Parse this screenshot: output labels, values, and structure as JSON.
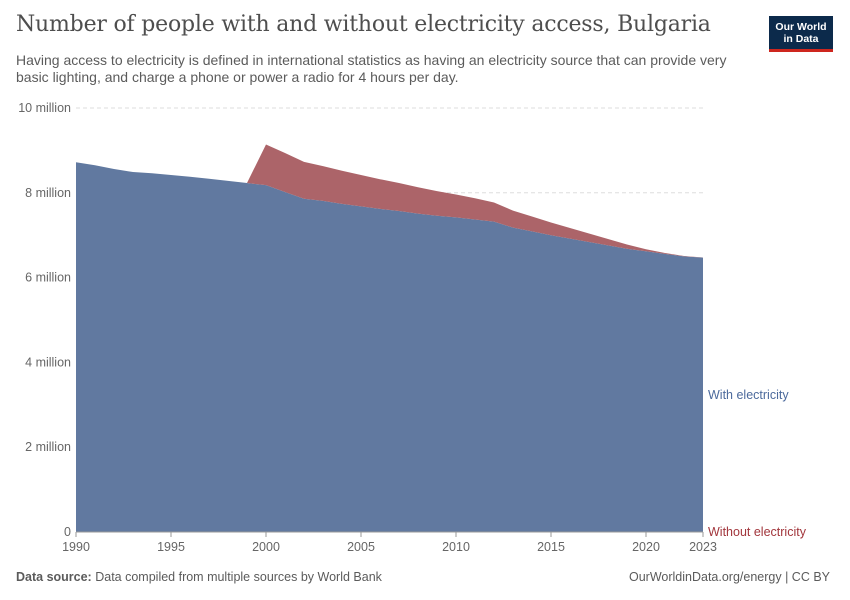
{
  "header": {
    "title": "Number of people with and without electricity access, Bulgaria",
    "subtitle": "Having access to electricity is defined in international statistics as having an electricity source that can provide very basic lighting, and charge a phone or power a radio for 4 hours per day."
  },
  "logo": {
    "line1": "Our World",
    "line2": "in Data"
  },
  "footer": {
    "source_label": "Data source:",
    "source_text": "Data compiled from multiple sources by World Bank",
    "credit": "OurWorldinData.org/energy | CC BY"
  },
  "colors": {
    "with_electricity": "#6179a0",
    "without_electricity": "#a85c61",
    "with_label": "#4c6a9c",
    "without_label": "#a2363c",
    "grid": "#dddddd"
  },
  "chart_data": {
    "type": "area",
    "stacked": true,
    "xlim": [
      1990,
      2023
    ],
    "ylim": [
      0,
      10000000
    ],
    "x_ticks": [
      1990,
      1995,
      2000,
      2005,
      2010,
      2015,
      2020,
      2023
    ],
    "y_ticks": [
      {
        "value": 0,
        "label": "0"
      },
      {
        "value": 2000000,
        "label": "2 million"
      },
      {
        "value": 4000000,
        "label": "4 million"
      },
      {
        "value": 6000000,
        "label": "6 million"
      },
      {
        "value": 8000000,
        "label": "8 million"
      },
      {
        "value": 10000000,
        "label": "10 million"
      }
    ],
    "grid": true,
    "x": [
      1990,
      1991,
      1992,
      1993,
      1994,
      1995,
      1996,
      1997,
      1998,
      1999,
      2000,
      2001,
      2002,
      2003,
      2004,
      2005,
      2006,
      2007,
      2008,
      2009,
      2010,
      2011,
      2012,
      2013,
      2014,
      2015,
      2016,
      2017,
      2018,
      2019,
      2020,
      2021,
      2022,
      2023
    ],
    "series": [
      {
        "name": "With electricity",
        "values": [
          8720000,
          8650000,
          8560000,
          8490000,
          8460000,
          8420000,
          8380000,
          8330000,
          8280000,
          8230000,
          8180000,
          8020000,
          7860000,
          7810000,
          7740000,
          7680000,
          7620000,
          7570000,
          7510000,
          7460000,
          7420000,
          7370000,
          7320000,
          7180000,
          7090000,
          7000000,
          6920000,
          6840000,
          6760000,
          6680000,
          6620000,
          6560000,
          6500000,
          6470000
        ]
      },
      {
        "name": "Without electricity",
        "values": [
          0,
          0,
          0,
          0,
          0,
          0,
          0,
          0,
          0,
          0,
          960000,
          920000,
          870000,
          820000,
          780000,
          740000,
          700000,
          660000,
          620000,
          580000,
          540000,
          500000,
          450000,
          400000,
          350000,
          300000,
          250000,
          200000,
          150000,
          100000,
          50000,
          20000,
          10000,
          5000
        ]
      }
    ]
  }
}
